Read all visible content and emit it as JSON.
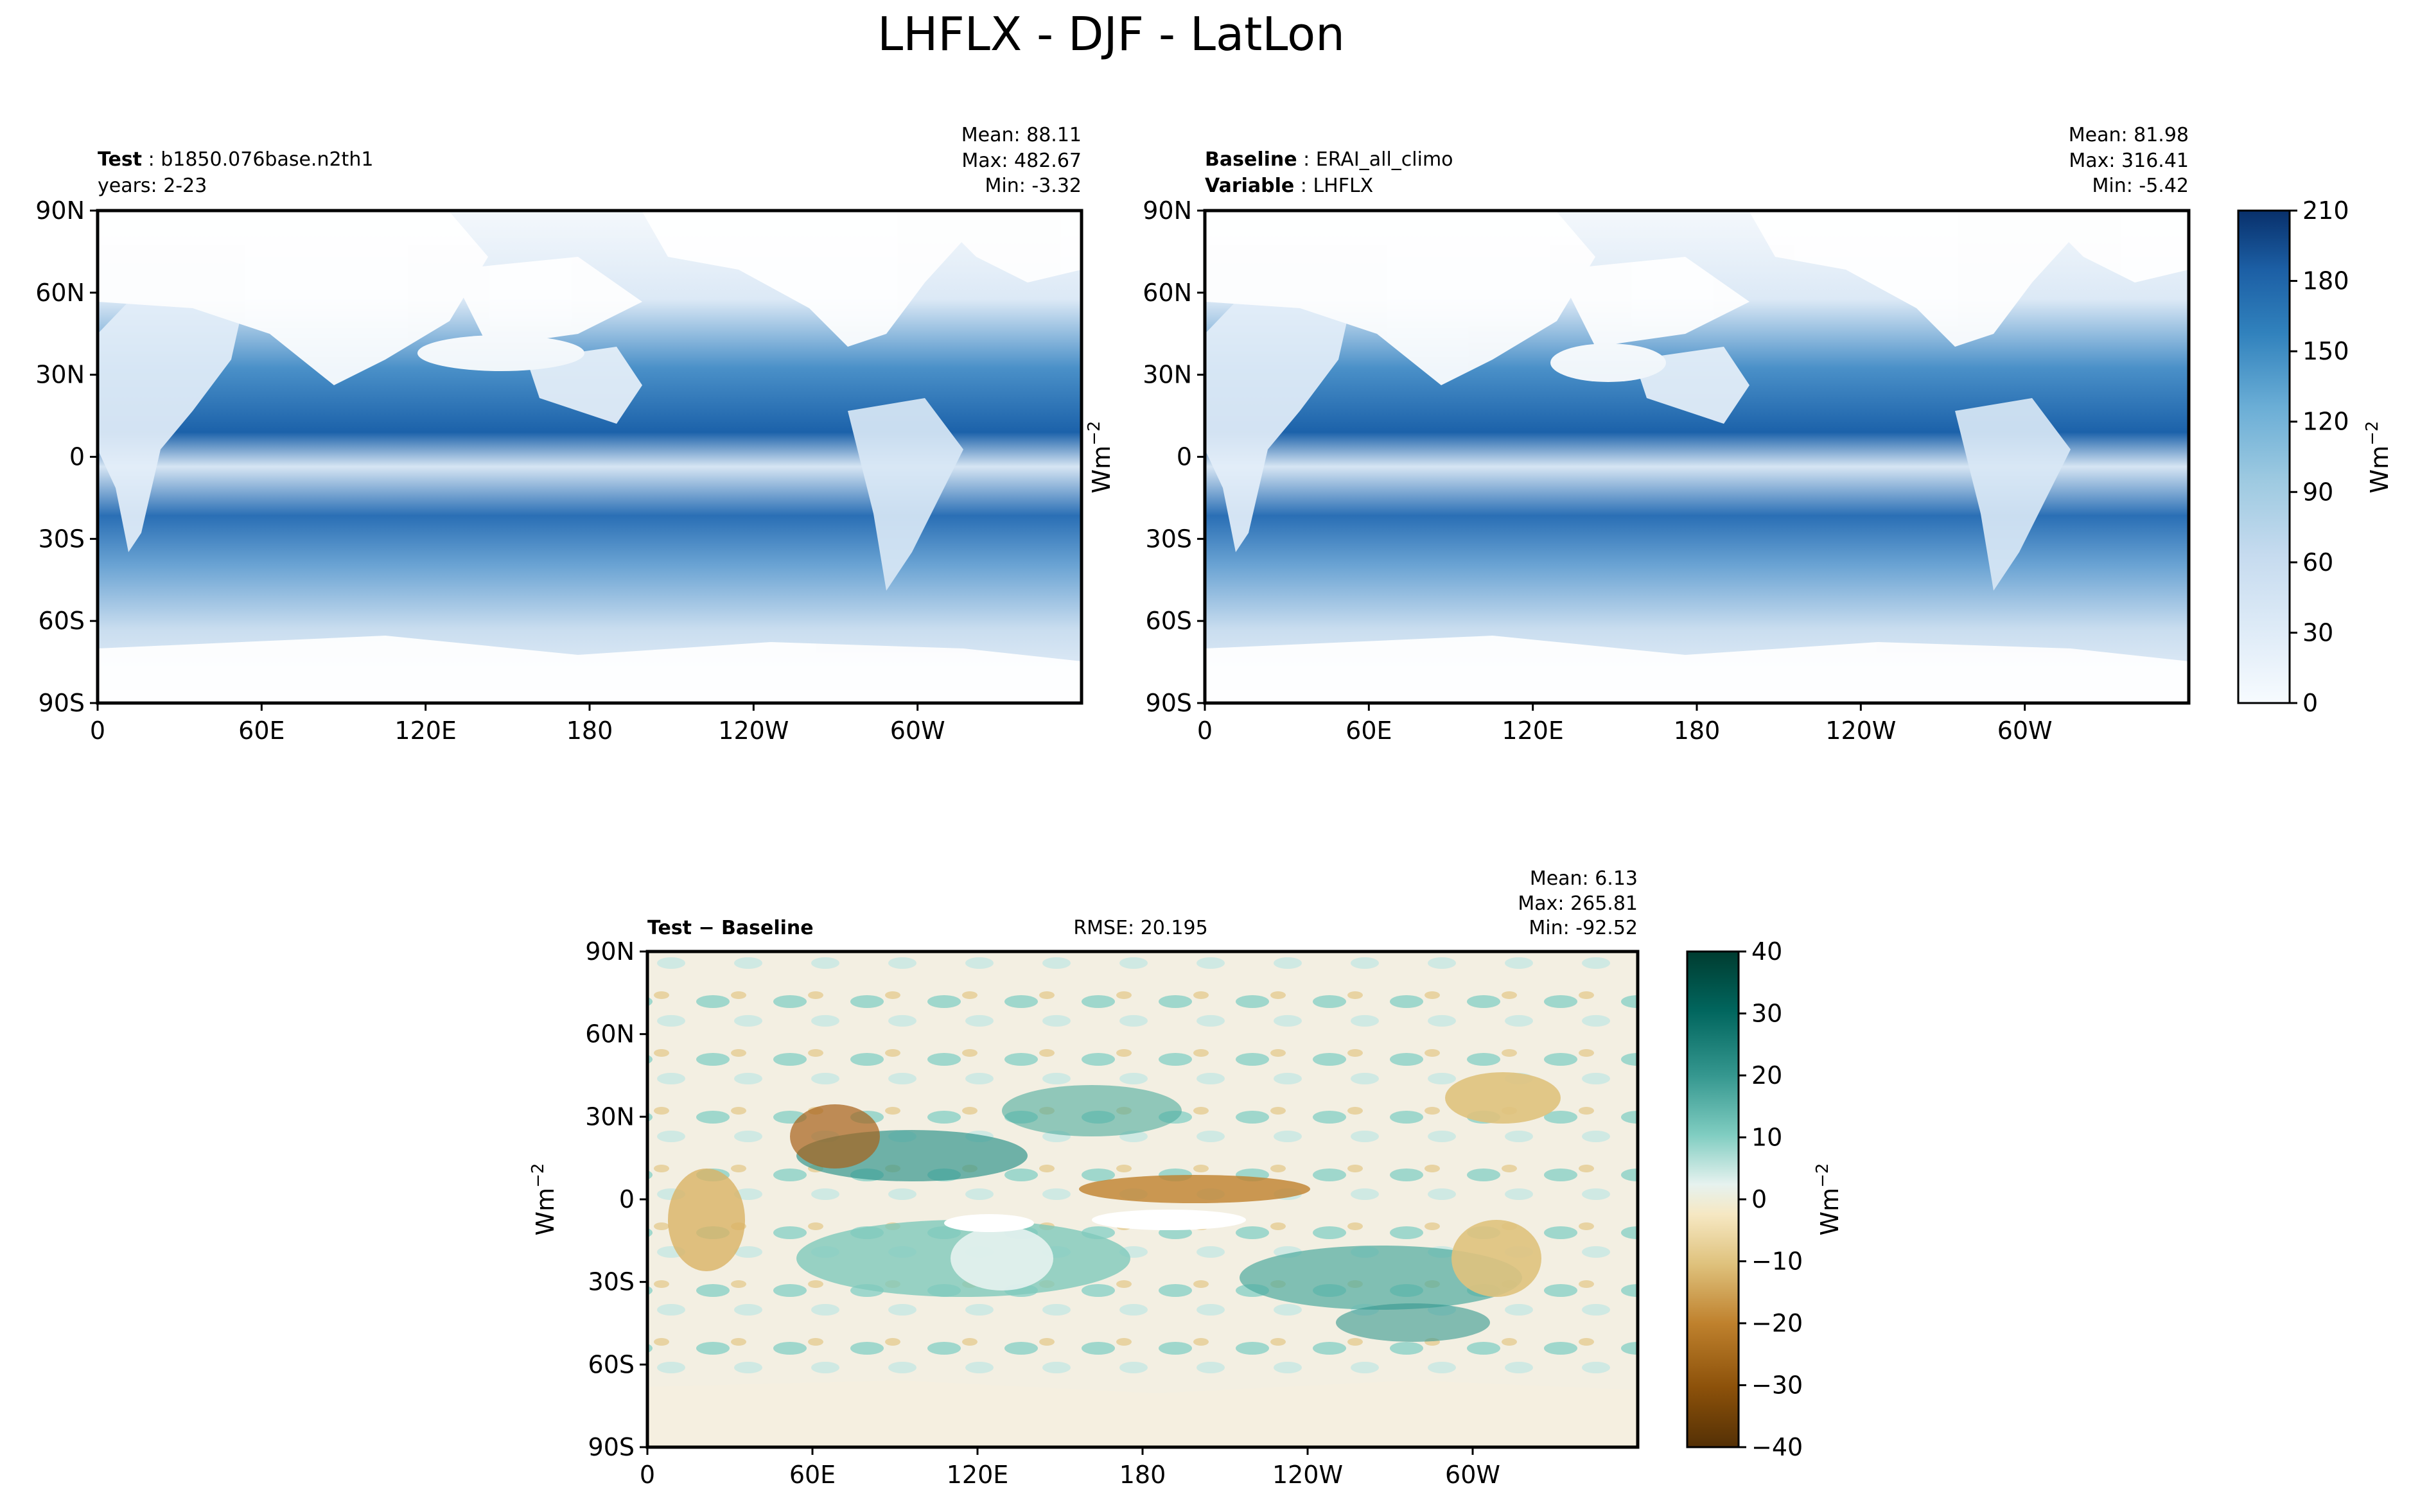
{
  "figure": {
    "title": "LHFLX - DJF - LatLon"
  },
  "chart_data": [
    {
      "type": "heatmap",
      "panel": "test",
      "label_bold": "Test",
      "label_value": "b1850.076base.n2th1",
      "sub_label": "years: 2-23",
      "stats": {
        "mean": "Mean: 88.11",
        "max": "Max: 482.67",
        "min": "Min: -3.32"
      },
      "xticks": [
        "0",
        "60E",
        "120E",
        "180",
        "120W",
        "60W"
      ],
      "yticks": [
        "90N",
        "60N",
        "30N",
        "0",
        "30S",
        "60S",
        "90S"
      ],
      "xlim": [
        0,
        360
      ],
      "ylim": [
        -90,
        90
      ],
      "colormap": "Blues"
    },
    {
      "type": "heatmap",
      "panel": "baseline",
      "label_bold": "Baseline",
      "label_value": "ERAI_all_climo",
      "sub_label_bold": "Variable",
      "sub_label_value": "LHFLX",
      "stats": {
        "mean": "Mean: 81.98",
        "max": "Max: 316.41",
        "min": "Min: -5.42"
      },
      "xticks": [
        "0",
        "60E",
        "120E",
        "180",
        "120W",
        "60W"
      ],
      "yticks": [
        "90N",
        "60N",
        "30N",
        "0",
        "30S",
        "60S",
        "90S"
      ],
      "xlim": [
        0,
        360
      ],
      "ylim": [
        -90,
        90
      ],
      "colormap": "Blues",
      "colorbar": {
        "ticks": [
          "0",
          "30",
          "60",
          "90",
          "120",
          "150",
          "180",
          "210"
        ],
        "range": [
          0,
          210
        ],
        "label": "Wm",
        "label_exp": "−2"
      }
    },
    {
      "type": "heatmap",
      "panel": "difference",
      "label_bold": "Test − Baseline",
      "rmse": "RMSE: 20.195",
      "stats": {
        "mean": "Mean:  6.13",
        "max": "Max: 265.81",
        "min": "Min: -92.52"
      },
      "xticks": [
        "0",
        "60E",
        "120E",
        "180",
        "120W",
        "60W"
      ],
      "yticks": [
        "90N",
        "60N",
        "30N",
        "0",
        "30S",
        "60S",
        "90S"
      ],
      "xlim": [
        0,
        360
      ],
      "ylim": [
        -90,
        90
      ],
      "colormap": "BrBG",
      "colorbar": {
        "ticks": [
          "40",
          "30",
          "20",
          "10",
          "0",
          "−10",
          "−20",
          "−30",
          "−40"
        ],
        "range": [
          -40,
          40
        ],
        "label": "Wm",
        "label_exp": "−2"
      }
    }
  ],
  "side_label": {
    "text": "Wm",
    "exp": "−2"
  }
}
